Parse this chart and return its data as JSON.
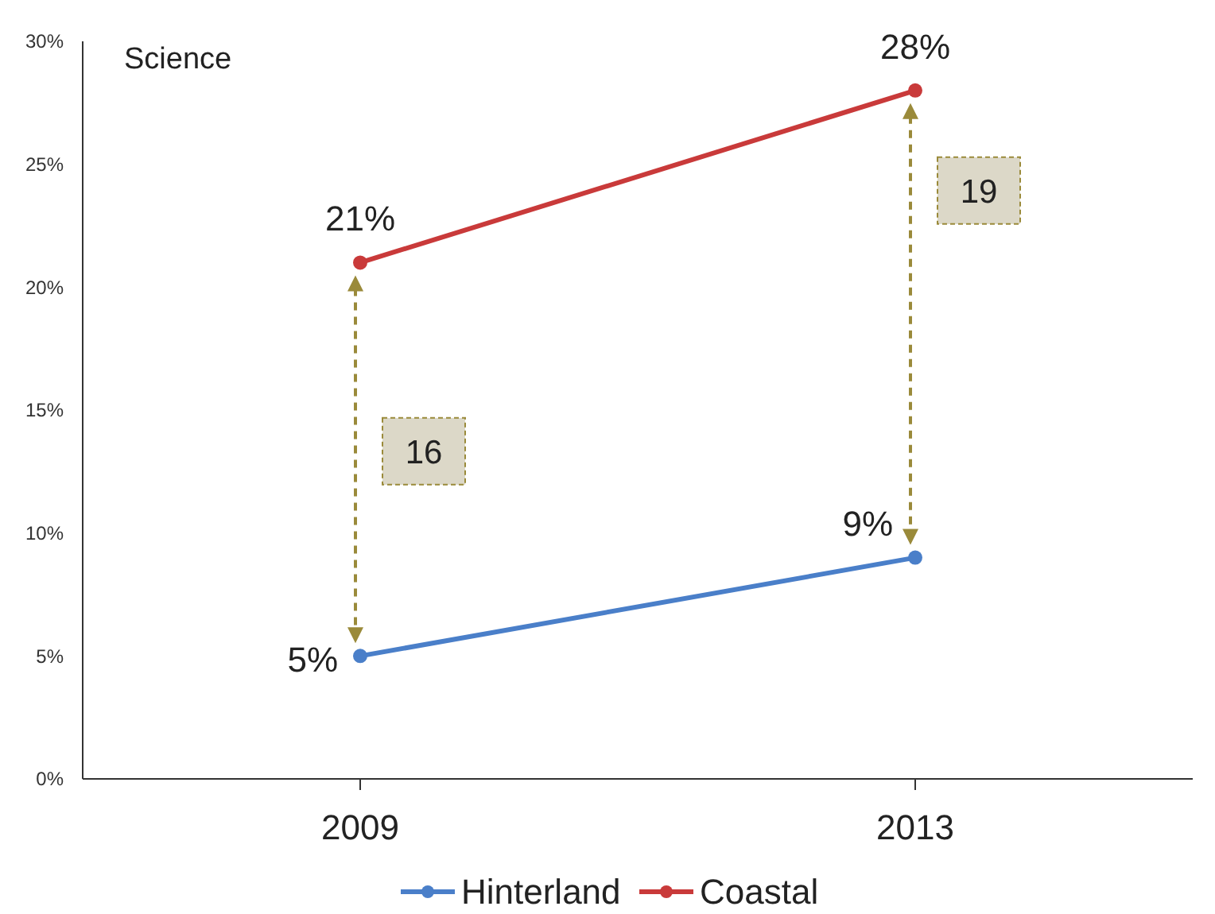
{
  "chart_data": {
    "type": "line",
    "title": "Science",
    "categories": [
      "2009",
      "2013"
    ],
    "series": [
      {
        "name": "Hinterland",
        "color": "#4a7fc9",
        "values": [
          5,
          9
        ],
        "value_labels": [
          "5%",
          "9%"
        ]
      },
      {
        "name": "Coastal",
        "color": "#c93a3a",
        "values": [
          21,
          28
        ],
        "value_labels": [
          "21%",
          "28%"
        ]
      }
    ],
    "ylim": [
      0,
      30
    ],
    "yticks": [
      {
        "value": 0,
        "label": "0%"
      },
      {
        "value": 5,
        "label": "5%"
      },
      {
        "value": 10,
        "label": "10%"
      },
      {
        "value": 15,
        "label": "15%"
      },
      {
        "value": 20,
        "label": "20%"
      },
      {
        "value": 25,
        "label": "25%"
      },
      {
        "value": 30,
        "label": "30%"
      }
    ],
    "annotations": [
      "16",
      "19"
    ],
    "grid": false,
    "legend": "bottom",
    "marker": "circle",
    "line_style": "solid"
  }
}
